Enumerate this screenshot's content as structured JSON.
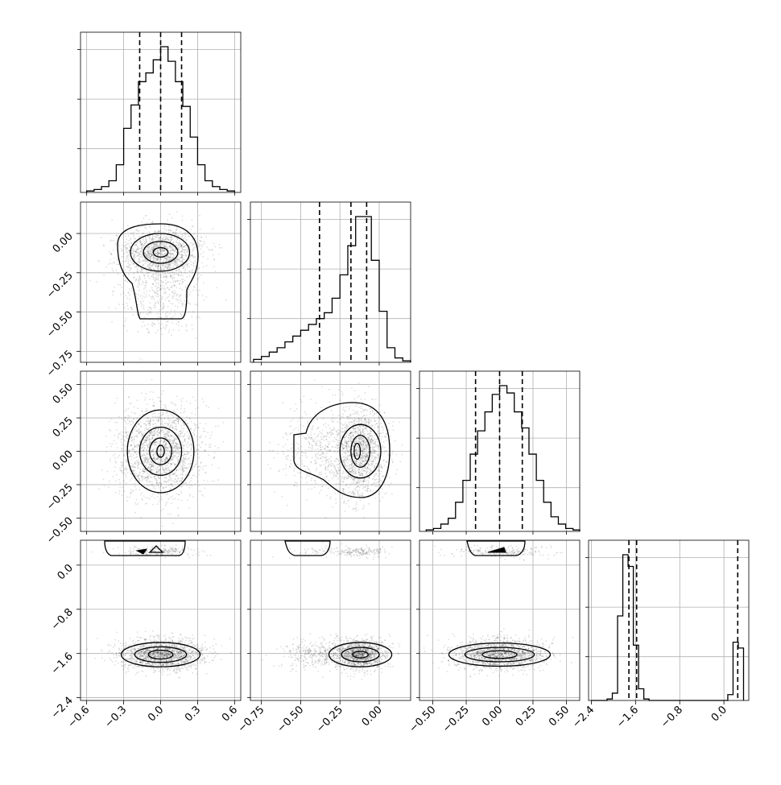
{
  "chart_data": {
    "type": "corner",
    "params": [
      {
        "id": "p0",
        "xlim": [
          -0.65,
          0.65
        ],
        "ticks": [
          -0.6,
          -0.3,
          0.0,
          0.3,
          0.6
        ],
        "tick_labels": [
          "−0.6",
          "−0.3",
          "0.0",
          "0.3",
          "0.6"
        ]
      },
      {
        "id": "p1",
        "xlim": [
          -0.82,
          0.2
        ],
        "ticks": [
          -0.75,
          -0.5,
          -0.25,
          0.0
        ],
        "tick_labels": [
          "−0.75",
          "−0.50",
          "−0.25",
          "0.00"
        ]
      },
      {
        "id": "p2",
        "xlim": [
          -0.6,
          0.6
        ],
        "ticks": [
          -0.5,
          -0.25,
          0.0,
          0.25,
          0.5
        ],
        "tick_labels": [
          "−0.50",
          "−0.25",
          "0.00",
          "0.25",
          "0.50"
        ]
      },
      {
        "id": "p3",
        "xlim": [
          -2.45,
          0.45
        ],
        "ticks": [
          -2.4,
          -1.6,
          -0.8,
          0.0
        ],
        "tick_labels": [
          "−2.4",
          "−1.6",
          "−0.8",
          "0.0"
        ]
      }
    ],
    "y_tick_labels": {
      "p1": [
        "0.00",
        "−0.25",
        "−0.50",
        "−0.75"
      ],
      "p2": [
        "0.50",
        "0.25",
        "0.00",
        "−0.25",
        "−0.50"
      ],
      "p3": [
        "0.0",
        "−0.8",
        "−1.6",
        "−2.4"
      ]
    },
    "quantiles": {
      "p0": [
        -0.17,
        0.0,
        0.17
      ],
      "p1": [
        -0.38,
        -0.18,
        -0.08
      ],
      "p2": [
        -0.18,
        0.0,
        0.17
      ],
      "p3": [
        -1.72,
        -1.58,
        0.25
      ]
    },
    "histograms": {
      "p0": {
        "edges_start": -0.6,
        "bin_width": 0.06,
        "counts": [
          1,
          2,
          4,
          8,
          19,
          44,
          60,
          76,
          82,
          91,
          100,
          90,
          76,
          59,
          38,
          19,
          8,
          4,
          2,
          1
        ]
      },
      "p1": {
        "edges_start": -0.8,
        "bin_width": 0.05,
        "counts": [
          2,
          4,
          7,
          10,
          14,
          18,
          22,
          26,
          30,
          34,
          44,
          60,
          80,
          100,
          100,
          70,
          35,
          10,
          3,
          1
        ]
      },
      "p2": {
        "edges_start": -0.55,
        "bin_width": 0.055,
        "counts": [
          1,
          2,
          5,
          9,
          20,
          35,
          53,
          69,
          82,
          94,
          100,
          95,
          82,
          71,
          53,
          35,
          20,
          10,
          5,
          2,
          1
        ]
      },
      "p3": {
        "edges_start": -2.4,
        "bin_width": 0.095,
        "counts": [
          0,
          0,
          0,
          1,
          5,
          58,
          100,
          92,
          38,
          8,
          1,
          0,
          0,
          0,
          0,
          0,
          0,
          0,
          0,
          0,
          0,
          0,
          0,
          0,
          0,
          0,
          4,
          40,
          36
        ]
      }
    },
    "grid": true
  }
}
